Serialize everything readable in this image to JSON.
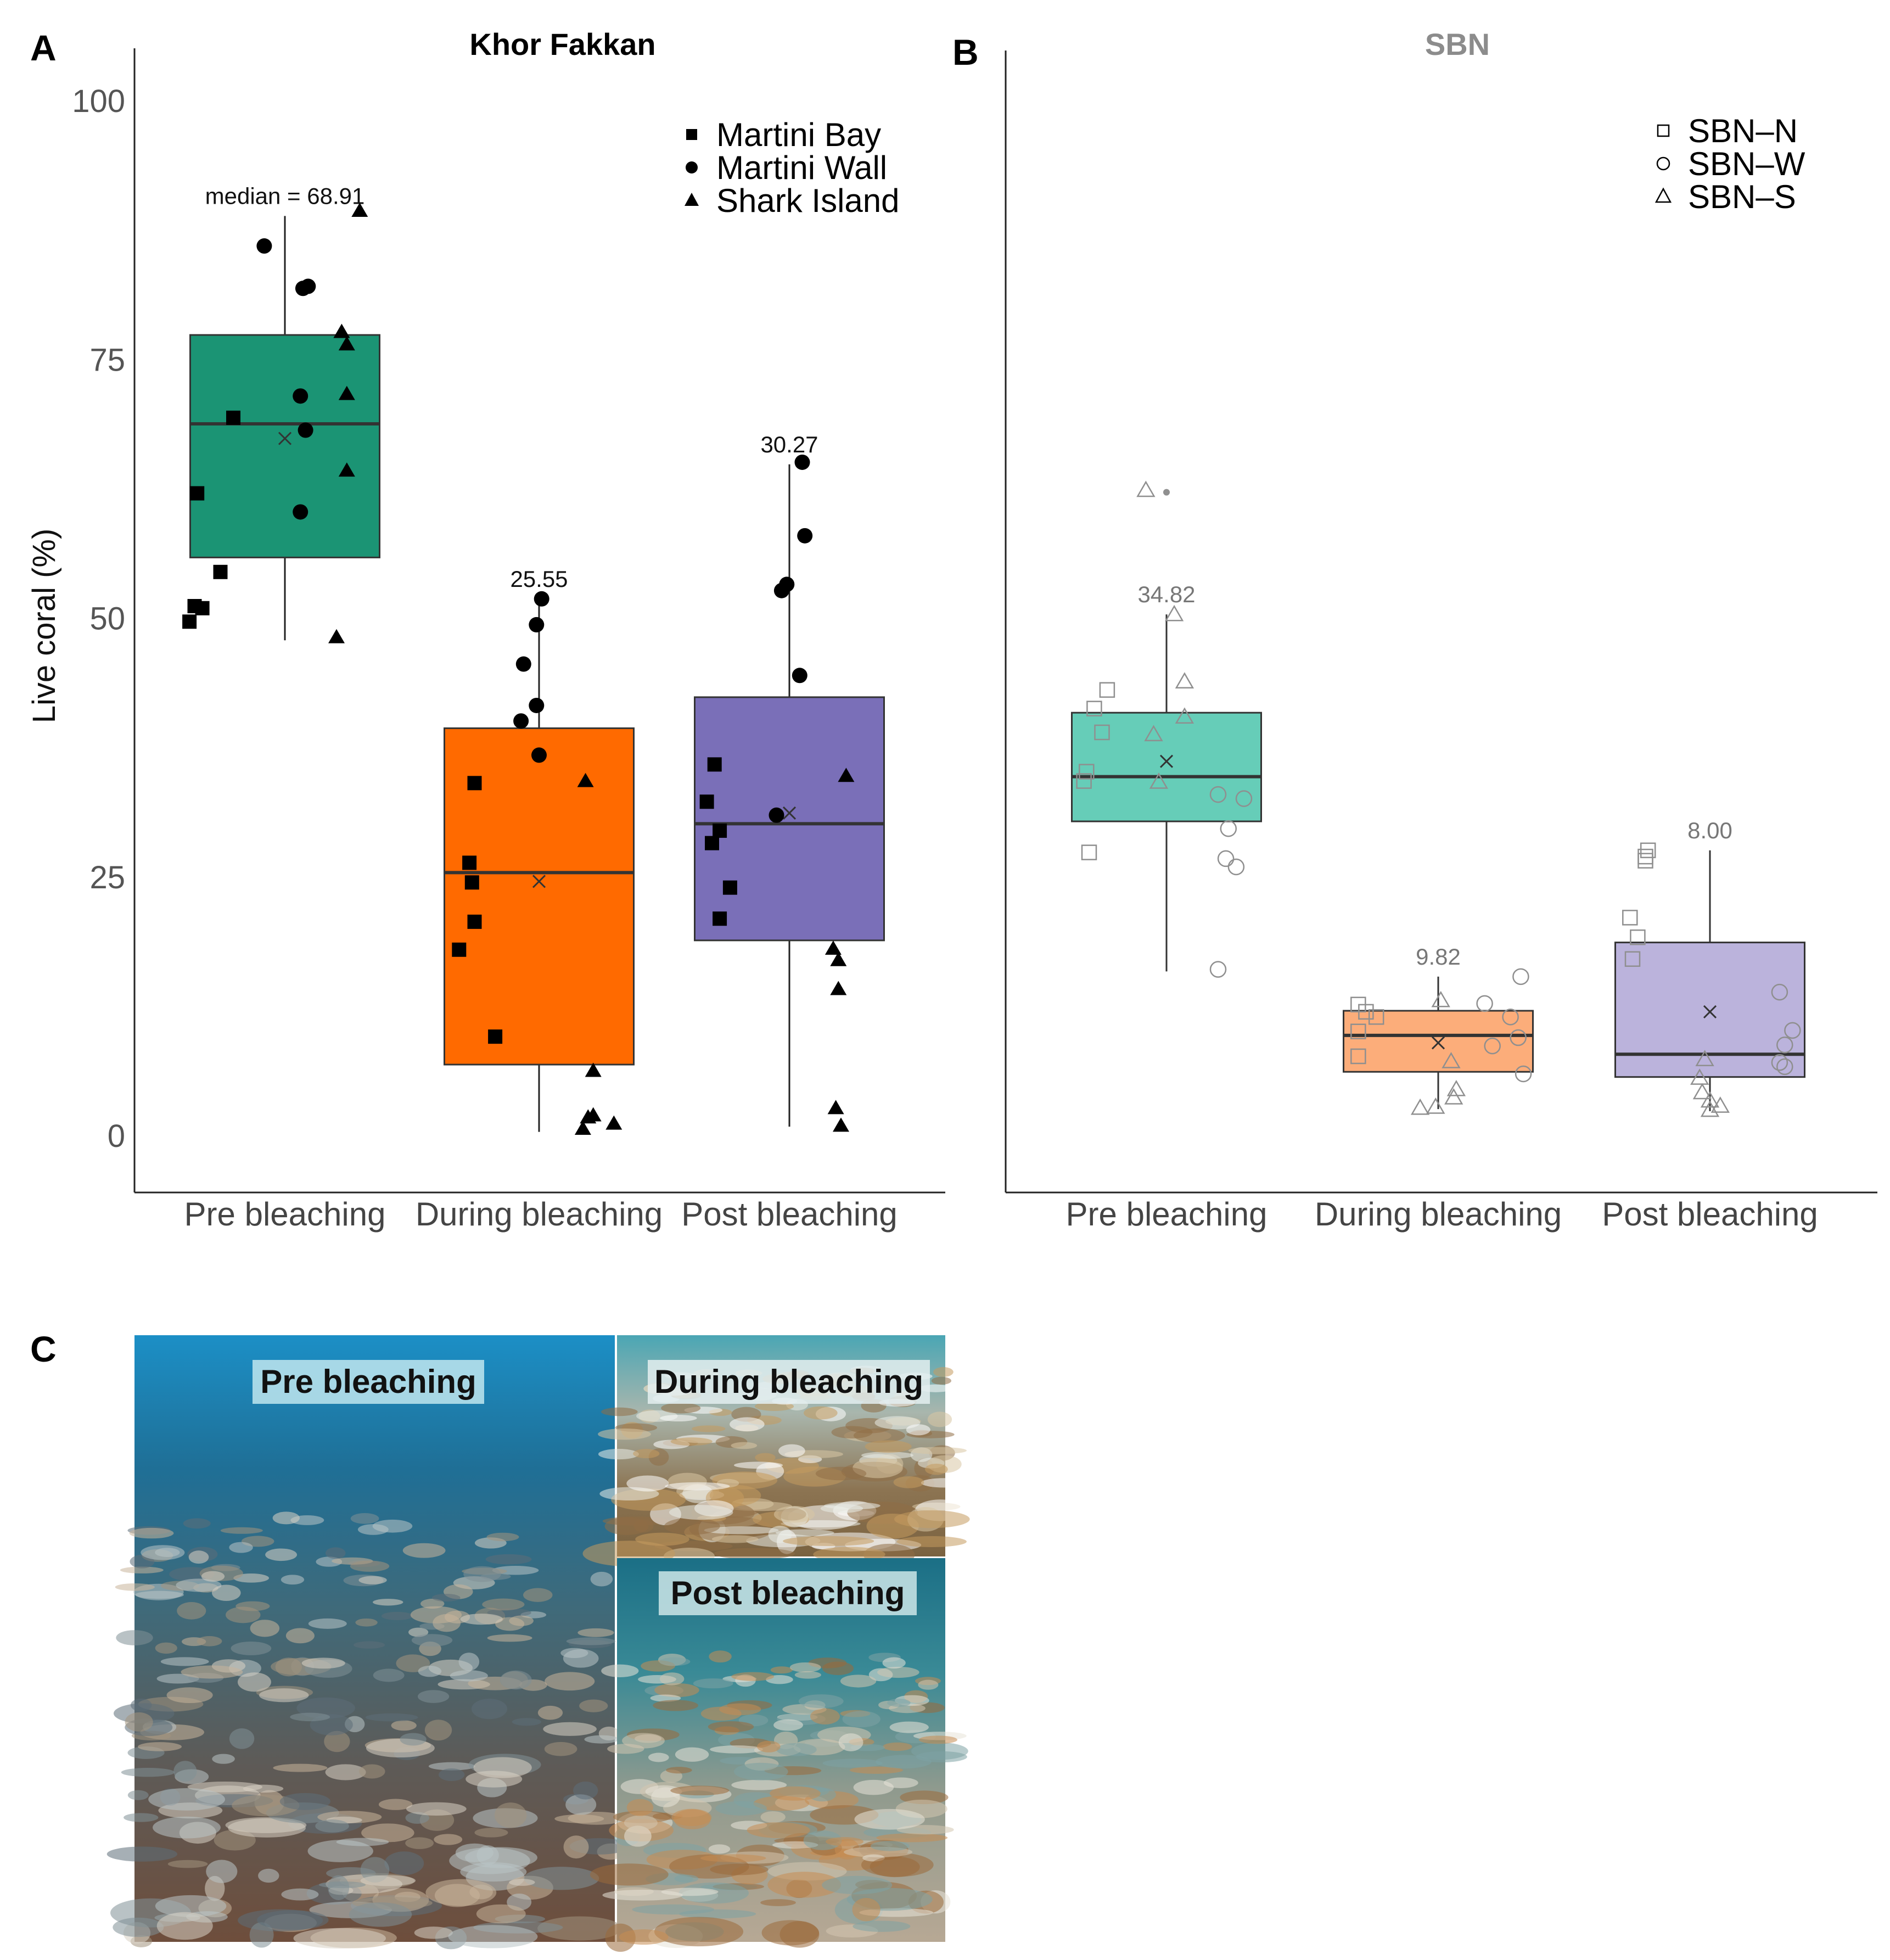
{
  "panel_labels": {
    "a": "A",
    "b": "B",
    "c": "C"
  },
  "y_axis_label": "Live coral (%)",
  "colors": {
    "kf_pre": "#1b9474",
    "kf_during": "#ff6a00",
    "kf_post": "#7a6fb8",
    "sbn_pre": "#66cdb8",
    "sbn_during": "#fcad7a",
    "sbn_post": "#bbb3dc",
    "sbn_title": "#8c8c8c"
  },
  "chart_data": [
    {
      "type": "box",
      "title": "Khor Fakkan",
      "categories": [
        "Pre bleaching",
        "During bleaching",
        "Post bleaching"
      ],
      "ylim": [
        -4,
        105
      ],
      "yticks": [
        0,
        25,
        50,
        75,
        100
      ],
      "legend": {
        "placement": "top-right",
        "entries": [
          {
            "label": "Martini Bay",
            "marker": "filled-square"
          },
          {
            "label": "Martini Wall",
            "marker": "filled-circle"
          },
          {
            "label": "Shark Island",
            "marker": "filled-triangle"
          }
        ]
      },
      "boxes": [
        {
          "category": "Pre bleaching",
          "q1": 56,
          "median": 68.91,
          "q3": 77.5,
          "whisker_low": 48,
          "whisker_high": 89,
          "mean": 67.5,
          "label": "median = 68.91"
        },
        {
          "category": "During bleaching",
          "q1": 7,
          "median": 25.55,
          "q3": 39.5,
          "whisker_low": 0.5,
          "whisker_high": 52,
          "mean": 24.7,
          "label": "25.55"
        },
        {
          "category": "Post bleaching",
          "q1": 19,
          "median": 30.27,
          "q3": 42.5,
          "whisker_low": 1,
          "whisker_high": 65,
          "mean": 31.3,
          "label": "30.27"
        }
      ],
      "points": [
        {
          "category": "Pre bleaching",
          "site": "Martini Bay",
          "dx": -0.37,
          "y": 49.8
        },
        {
          "category": "Pre bleaching",
          "site": "Martini Bay",
          "dx": -0.35,
          "y": 51.3
        },
        {
          "category": "Pre bleaching",
          "site": "Martini Bay",
          "dx": -0.32,
          "y": 51.1
        },
        {
          "category": "Pre bleaching",
          "site": "Martini Bay",
          "dx": -0.34,
          "y": 62.2
        },
        {
          "category": "Pre bleaching",
          "site": "Martini Bay",
          "dx": -0.25,
          "y": 54.6
        },
        {
          "category": "Pre bleaching",
          "site": "Martini Bay",
          "dx": -0.2,
          "y": 69.5
        },
        {
          "category": "Pre bleaching",
          "site": "Martini Wall",
          "dx": -0.08,
          "y": 86.1
        },
        {
          "category": "Pre bleaching",
          "site": "Martini Wall",
          "dx": 0.07,
          "y": 82.0
        },
        {
          "category": "Pre bleaching",
          "site": "Martini Wall",
          "dx": 0.09,
          "y": 82.2
        },
        {
          "category": "Pre bleaching",
          "site": "Martini Wall",
          "dx": 0.06,
          "y": 71.6
        },
        {
          "category": "Pre bleaching",
          "site": "Martini Wall",
          "dx": 0.08,
          "y": 68.3
        },
        {
          "category": "Pre bleaching",
          "site": "Martini Wall",
          "dx": 0.06,
          "y": 60.4
        },
        {
          "category": "Pre bleaching",
          "site": "Shark Island",
          "dx": 0.22,
          "y": 77.8
        },
        {
          "category": "Pre bleaching",
          "site": "Shark Island",
          "dx": 0.24,
          "y": 76.6
        },
        {
          "category": "Pre bleaching",
          "site": "Shark Island",
          "dx": 0.24,
          "y": 71.8
        },
        {
          "category": "Pre bleaching",
          "site": "Shark Island",
          "dx": 0.24,
          "y": 64.4
        },
        {
          "category": "Pre bleaching",
          "site": "Shark Island",
          "dx": 0.2,
          "y": 48.3
        },
        {
          "category": "Pre bleaching",
          "site": "Shark Island",
          "dx": 0.29,
          "y": 89.5
        },
        {
          "category": "During bleaching",
          "site": "Martini Bay",
          "dx": -0.25,
          "y": 34.2
        },
        {
          "category": "During bleaching",
          "site": "Martini Bay",
          "dx": -0.27,
          "y": 26.5
        },
        {
          "category": "During bleaching",
          "site": "Martini Bay",
          "dx": -0.26,
          "y": 24.6
        },
        {
          "category": "During bleaching",
          "site": "Martini Bay",
          "dx": -0.25,
          "y": 20.8
        },
        {
          "category": "During bleaching",
          "site": "Martini Bay",
          "dx": -0.31,
          "y": 18.1
        },
        {
          "category": "During bleaching",
          "site": "Martini Bay",
          "dx": -0.17,
          "y": 9.7
        },
        {
          "category": "During bleaching",
          "site": "Martini Wall",
          "dx": 0.01,
          "y": 52.0
        },
        {
          "category": "During bleaching",
          "site": "Martini Wall",
          "dx": -0.01,
          "y": 49.5
        },
        {
          "category": "During bleaching",
          "site": "Martini Wall",
          "dx": -0.06,
          "y": 45.7
        },
        {
          "category": "During bleaching",
          "site": "Martini Wall",
          "dx": -0.01,
          "y": 41.7
        },
        {
          "category": "During bleaching",
          "site": "Martini Wall",
          "dx": -0.07,
          "y": 40.2
        },
        {
          "category": "During bleaching",
          "site": "Martini Wall",
          "dx": 0.0,
          "y": 36.9
        },
        {
          "category": "During bleaching",
          "site": "Shark Island",
          "dx": 0.18,
          "y": 34.4
        },
        {
          "category": "During bleaching",
          "site": "Shark Island",
          "dx": 0.21,
          "y": 6.4
        },
        {
          "category": "During bleaching",
          "site": "Shark Island",
          "dx": 0.21,
          "y": 2.1
        },
        {
          "category": "During bleaching",
          "site": "Shark Island",
          "dx": 0.19,
          "y": 1.9
        },
        {
          "category": "During bleaching",
          "site": "Shark Island",
          "dx": 0.29,
          "y": 1.3
        },
        {
          "category": "During bleaching",
          "site": "Shark Island",
          "dx": 0.17,
          "y": 0.8
        },
        {
          "category": "Post bleaching",
          "site": "Martini Bay",
          "dx": -0.29,
          "y": 36.0
        },
        {
          "category": "Post bleaching",
          "site": "Martini Bay",
          "dx": -0.32,
          "y": 32.4
        },
        {
          "category": "Post bleaching",
          "site": "Martini Bay",
          "dx": -0.27,
          "y": 29.6
        },
        {
          "category": "Post bleaching",
          "site": "Martini Bay",
          "dx": -0.3,
          "y": 28.4
        },
        {
          "category": "Post bleaching",
          "site": "Martini Bay",
          "dx": -0.23,
          "y": 24.1
        },
        {
          "category": "Post bleaching",
          "site": "Martini Bay",
          "dx": -0.27,
          "y": 21.1
        },
        {
          "category": "Post bleaching",
          "site": "Martini Wall",
          "dx": 0.05,
          "y": 65.2
        },
        {
          "category": "Post bleaching",
          "site": "Martini Wall",
          "dx": 0.06,
          "y": 58.1
        },
        {
          "category": "Post bleaching",
          "site": "Martini Wall",
          "dx": -0.01,
          "y": 53.4
        },
        {
          "category": "Post bleaching",
          "site": "Martini Wall",
          "dx": -0.03,
          "y": 52.8
        },
        {
          "category": "Post bleaching",
          "site": "Martini Wall",
          "dx": 0.04,
          "y": 44.6
        },
        {
          "category": "Post bleaching",
          "site": "Martini Wall",
          "dx": -0.05,
          "y": 31.1
        },
        {
          "category": "Post bleaching",
          "site": "Shark Island",
          "dx": 0.22,
          "y": 34.9
        },
        {
          "category": "Post bleaching",
          "site": "Shark Island",
          "dx": 0.17,
          "y": 18.2
        },
        {
          "category": "Post bleaching",
          "site": "Shark Island",
          "dx": 0.19,
          "y": 17.1
        },
        {
          "category": "Post bleaching",
          "site": "Shark Island",
          "dx": 0.19,
          "y": 14.3
        },
        {
          "category": "Post bleaching",
          "site": "Shark Island",
          "dx": 0.18,
          "y": 2.8
        },
        {
          "category": "Post bleaching",
          "site": "Shark Island",
          "dx": 0.2,
          "y": 1.1
        }
      ]
    },
    {
      "type": "box",
      "title": "SBN",
      "categories": [
        "Pre bleaching",
        "During bleaching",
        "Post bleaching"
      ],
      "ylim": [
        -4,
        105
      ],
      "legend": {
        "placement": "top-right",
        "entries": [
          {
            "label": "SBN–N",
            "marker": "open-square"
          },
          {
            "label": "SBN–W",
            "marker": "open-circle"
          },
          {
            "label": "SBN–S",
            "marker": "open-triangle"
          }
        ]
      },
      "boxes": [
        {
          "category": "Pre bleaching",
          "q1": 30.5,
          "median": 34.82,
          "q3": 41,
          "whisker_low": 16,
          "whisker_high": 50.5,
          "mean": 36.3,
          "label": "34.82",
          "outliers": [
            62.3
          ]
        },
        {
          "category": "During bleaching",
          "q1": 6.3,
          "median": 9.82,
          "q3": 12.2,
          "whisker_low": 2.7,
          "whisker_high": 15.5,
          "mean": 9.1,
          "label": "9.82"
        },
        {
          "category": "Post bleaching",
          "q1": 5.8,
          "median": 8.0,
          "q3": 18.8,
          "whisker_low": 2.5,
          "whisker_high": 27.7,
          "mean": 12.1,
          "label": "8.00"
        }
      ],
      "points": [
        {
          "category": "Pre bleaching",
          "site": "SBN–N",
          "dx": -0.23,
          "y": 43.2
        },
        {
          "category": "Pre bleaching",
          "site": "SBN–N",
          "dx": -0.28,
          "y": 41.4
        },
        {
          "category": "Pre bleaching",
          "site": "SBN–N",
          "dx": -0.25,
          "y": 39.1
        },
        {
          "category": "Pre bleaching",
          "site": "SBN–N",
          "dx": -0.31,
          "y": 35.3
        },
        {
          "category": "Pre bleaching",
          "site": "SBN–N",
          "dx": -0.32,
          "y": 34.4
        },
        {
          "category": "Pre bleaching",
          "site": "SBN–N",
          "dx": -0.3,
          "y": 27.5
        },
        {
          "category": "Pre bleaching",
          "site": "SBN–W",
          "dx": 0.2,
          "y": 33.1
        },
        {
          "category": "Pre bleaching",
          "site": "SBN–W",
          "dx": 0.3,
          "y": 32.7
        },
        {
          "category": "Pre bleaching",
          "site": "SBN–W",
          "dx": 0.24,
          "y": 29.8
        },
        {
          "category": "Pre bleaching",
          "site": "SBN–W",
          "dx": 0.23,
          "y": 26.9
        },
        {
          "category": "Pre bleaching",
          "site": "SBN–W",
          "dx": 0.27,
          "y": 26.1
        },
        {
          "category": "Pre bleaching",
          "site": "SBN–W",
          "dx": 0.2,
          "y": 16.2
        },
        {
          "category": "Pre bleaching",
          "site": "SBN–S",
          "dx": -0.08,
          "y": 62.5
        },
        {
          "category": "Pre bleaching",
          "site": "SBN–S",
          "dx": 0.03,
          "y": 50.5
        },
        {
          "category": "Pre bleaching",
          "site": "SBN–S",
          "dx": 0.07,
          "y": 44.0
        },
        {
          "category": "Pre bleaching",
          "site": "SBN–S",
          "dx": 0.07,
          "y": 40.6
        },
        {
          "category": "Pre bleaching",
          "site": "SBN–S",
          "dx": -0.05,
          "y": 38.9
        },
        {
          "category": "Pre bleaching",
          "site": "SBN–S",
          "dx": -0.03,
          "y": 34.3
        },
        {
          "category": "During bleaching",
          "site": "SBN–N",
          "dx": -0.31,
          "y": 12.8
        },
        {
          "category": "During bleaching",
          "site": "SBN–N",
          "dx": -0.28,
          "y": 12.1
        },
        {
          "category": "During bleaching",
          "site": "SBN–N",
          "dx": -0.24,
          "y": 11.6
        },
        {
          "category": "During bleaching",
          "site": "SBN–N",
          "dx": -0.31,
          "y": 10.2
        },
        {
          "category": "During bleaching",
          "site": "SBN–N",
          "dx": -0.31,
          "y": 7.8
        },
        {
          "category": "During bleaching",
          "site": "SBN–W",
          "dx": 0.32,
          "y": 15.5
        },
        {
          "category": "During bleaching",
          "site": "SBN–W",
          "dx": 0.18,
          "y": 12.9
        },
        {
          "category": "During bleaching",
          "site": "SBN–W",
          "dx": 0.28,
          "y": 11.6
        },
        {
          "category": "During bleaching",
          "site": "SBN–W",
          "dx": 0.31,
          "y": 9.6
        },
        {
          "category": "During bleaching",
          "site": "SBN–W",
          "dx": 0.21,
          "y": 8.8
        },
        {
          "category": "During bleaching",
          "site": "SBN–W",
          "dx": 0.33,
          "y": 6.1
        },
        {
          "category": "During bleaching",
          "site": "SBN–S",
          "dx": 0.01,
          "y": 13.2
        },
        {
          "category": "During bleaching",
          "site": "SBN–S",
          "dx": 0.05,
          "y": 7.3
        },
        {
          "category": "During bleaching",
          "site": "SBN–S",
          "dx": 0.07,
          "y": 4.6
        },
        {
          "category": "During bleaching",
          "site": "SBN–S",
          "dx": 0.06,
          "y": 3.8
        },
        {
          "category": "During bleaching",
          "site": "SBN–S",
          "dx": -0.01,
          "y": 2.9
        },
        {
          "category": "During bleaching",
          "site": "SBN–S",
          "dx": -0.07,
          "y": 2.8
        },
        {
          "category": "Post bleaching",
          "site": "SBN–N",
          "dx": -0.24,
          "y": 27.7
        },
        {
          "category": "Post bleaching",
          "site": "SBN–N",
          "dx": -0.25,
          "y": 26.7
        },
        {
          "category": "Post bleaching",
          "site": "SBN–N",
          "dx": -0.25,
          "y": 27.1
        },
        {
          "category": "Post bleaching",
          "site": "SBN–N",
          "dx": -0.31,
          "y": 21.2
        },
        {
          "category": "Post bleaching",
          "site": "SBN–N",
          "dx": -0.28,
          "y": 19.3
        },
        {
          "category": "Post bleaching",
          "site": "SBN–N",
          "dx": -0.3,
          "y": 17.2
        },
        {
          "category": "Post bleaching",
          "site": "SBN–W",
          "dx": 0.27,
          "y": 14.0
        },
        {
          "category": "Post bleaching",
          "site": "SBN–W",
          "dx": 0.32,
          "y": 10.3
        },
        {
          "category": "Post bleaching",
          "site": "SBN–W",
          "dx": 0.29,
          "y": 8.9
        },
        {
          "category": "Post bleaching",
          "site": "SBN–W",
          "dx": 0.27,
          "y": 7.2
        },
        {
          "category": "Post bleaching",
          "site": "SBN–W",
          "dx": 0.29,
          "y": 6.8
        },
        {
          "category": "Post bleaching",
          "site": "SBN–S",
          "dx": -0.02,
          "y": 7.5
        },
        {
          "category": "Post bleaching",
          "site": "SBN–S",
          "dx": -0.04,
          "y": 5.7
        },
        {
          "category": "Post bleaching",
          "site": "SBN–S",
          "dx": -0.03,
          "y": 4.3
        },
        {
          "category": "Post bleaching",
          "site": "SBN–S",
          "dx": 0.0,
          "y": 3.5
        },
        {
          "category": "Post bleaching",
          "site": "SBN–S",
          "dx": 0.04,
          "y": 3.0
        },
        {
          "category": "Post bleaching",
          "site": "SBN–S",
          "dx": 0.0,
          "y": 2.6
        }
      ]
    }
  ],
  "photos": {
    "pre": "Pre bleaching",
    "during": "During bleaching",
    "post": "Post bleaching"
  }
}
